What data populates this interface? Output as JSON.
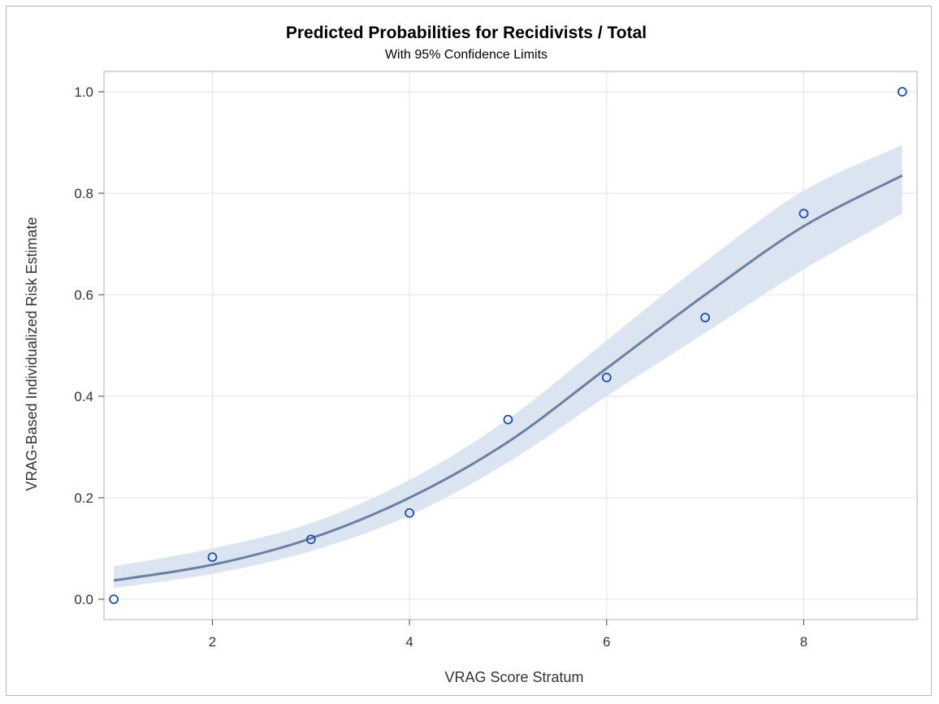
{
  "chart_data": {
    "type": "scatter",
    "title": "Predicted Probabilities for Recidivists / Total",
    "subtitle": "With 95% Confidence Limits",
    "xlabel": "VRAG Score Stratum",
    "ylabel": "VRAG-Based Individualized Risk Estimate",
    "xlim": [
      0.9,
      9.15
    ],
    "ylim": [
      -0.04,
      1.04
    ],
    "xticks": [
      2,
      4,
      6,
      8
    ],
    "yticks": [
      0.0,
      0.2,
      0.4,
      0.6,
      0.8,
      1.0
    ],
    "xtick_labels": [
      "2",
      "4",
      "6",
      "8"
    ],
    "ytick_labels": [
      "0.0",
      "0.2",
      "0.4",
      "0.6",
      "0.8",
      "1.0"
    ],
    "grid": true,
    "observed": {
      "x": [
        1,
        2,
        3,
        4,
        5,
        6,
        7,
        8,
        9
      ],
      "y": [
        0.0,
        0.083,
        0.118,
        0.17,
        0.354,
        0.437,
        0.555,
        0.76,
        1.0
      ]
    },
    "fit": {
      "x": [
        1,
        2,
        3,
        4,
        5,
        6,
        7,
        8,
        9
      ],
      "y": [
        0.037,
        0.068,
        0.12,
        0.2,
        0.31,
        0.455,
        0.6,
        0.735,
        0.835
      ]
    },
    "confidence_band": {
      "x": [
        1,
        2,
        3,
        4,
        5,
        6,
        7,
        8,
        9
      ],
      "lower": [
        0.022,
        0.05,
        0.095,
        0.165,
        0.27,
        0.4,
        0.525,
        0.65,
        0.76
      ],
      "upper": [
        0.065,
        0.1,
        0.15,
        0.235,
        0.355,
        0.51,
        0.665,
        0.805,
        0.895
      ]
    },
    "colors": {
      "marker": "#1f4fa8",
      "fit_line": "#6b819f",
      "band": "#dbe4f1",
      "grid": "#e3e3e3",
      "axis": "#b0b0b0"
    }
  }
}
